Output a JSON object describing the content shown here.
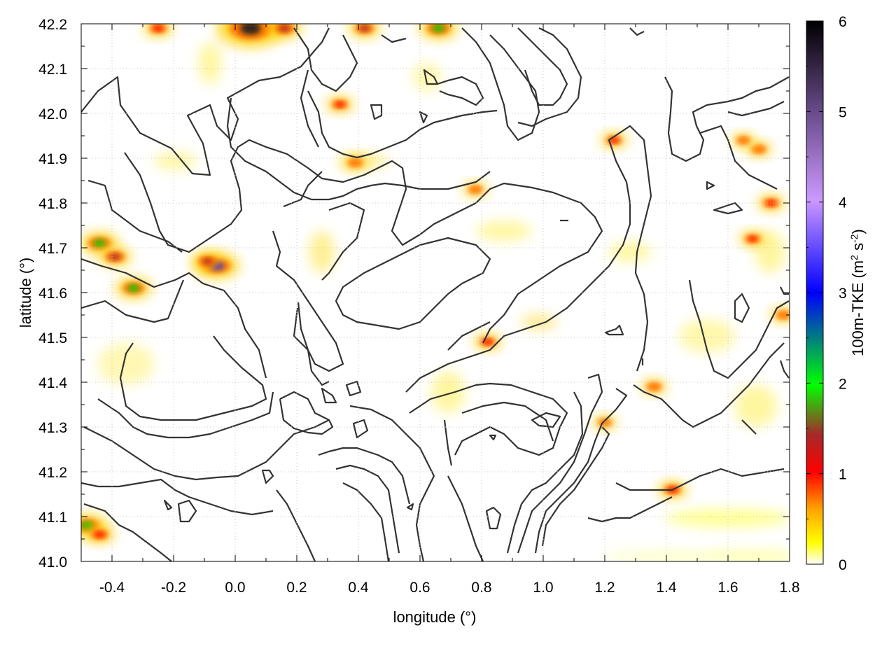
{
  "chart_data": {
    "type": "heatmap",
    "xlabel": "longitude (°)",
    "ylabel": "latitude (°)",
    "colorbar_label": "100m-TKE (m² s⁻²)",
    "colorbar_label_parts": {
      "main": "100m-TKE (m",
      "sup1": "2",
      "mid": " s",
      "sup2": "-2",
      "end": ")"
    },
    "xlim": [
      -0.5,
      1.8
    ],
    "ylim": [
      41.0,
      42.2
    ],
    "zlim": [
      0,
      6
    ],
    "x_ticks": [
      -0.4,
      -0.2,
      0.0,
      0.2,
      0.4,
      0.6,
      0.8,
      1.0,
      1.2,
      1.4,
      1.6,
      1.8
    ],
    "x_tick_labels": [
      "-0.4",
      "-0.2",
      "0.0",
      "0.2",
      "0.4",
      "0.6",
      "0.8",
      "1.0",
      "1.2",
      "1.4",
      "1.6",
      "1.8"
    ],
    "y_ticks": [
      41.0,
      41.1,
      41.2,
      41.3,
      41.4,
      41.5,
      41.6,
      41.7,
      41.8,
      41.9,
      42.0,
      42.1,
      42.2
    ],
    "y_tick_labels": [
      "41.0",
      "41.1",
      "41.2",
      "41.3",
      "41.4",
      "41.5",
      "41.6",
      "41.7",
      "41.8",
      "41.9",
      "42.0",
      "42.1",
      "42.2"
    ],
    "colorbar_ticks": [
      0,
      1,
      2,
      3,
      4,
      5,
      6
    ],
    "colorbar_tick_labels": [
      "0",
      "1",
      "2",
      "3",
      "4",
      "5",
      "6"
    ],
    "colormap": [
      "#ffffff",
      "#ffff00",
      "#ffa500",
      "#ff0000",
      "#a52a2a",
      "#00ff00",
      "#0000ff",
      "#cc99ff",
      "#000000"
    ],
    "grid": true,
    "contour_color": "#333333",
    "hotspots": [
      {
        "x": -0.44,
        "y": 41.71,
        "tke": 2.2
      },
      {
        "x": -0.39,
        "y": 41.68,
        "tke": 1.6
      },
      {
        "x": -0.33,
        "y": 41.61,
        "tke": 2.0
      },
      {
        "x": -0.06,
        "y": 41.66,
        "tke": 3.0
      },
      {
        "x": -0.09,
        "y": 41.67,
        "tke": 1.4
      },
      {
        "x": -0.48,
        "y": 41.08,
        "tke": 2.4
      },
      {
        "x": -0.44,
        "y": 41.06,
        "tke": 1.2
      },
      {
        "x": 0.05,
        "y": 42.19,
        "tke": 5.5
      },
      {
        "x": 0.16,
        "y": 42.19,
        "tke": 1.8
      },
      {
        "x": -0.25,
        "y": 42.19,
        "tke": 1.2
      },
      {
        "x": 0.42,
        "y": 42.19,
        "tke": 1.5
      },
      {
        "x": 0.66,
        "y": 42.19,
        "tke": 2.2
      },
      {
        "x": 0.34,
        "y": 42.02,
        "tke": 1.0
      },
      {
        "x": 0.82,
        "y": 41.49,
        "tke": 1.0
      },
      {
        "x": 1.42,
        "y": 41.16,
        "tke": 1.2
      },
      {
        "x": 1.36,
        "y": 41.39,
        "tke": 0.8
      },
      {
        "x": 1.68,
        "y": 41.72,
        "tke": 0.9
      },
      {
        "x": 1.74,
        "y": 41.8,
        "tke": 1.0
      },
      {
        "x": 1.7,
        "y": 41.92,
        "tke": 0.8
      },
      {
        "x": 1.78,
        "y": 41.55,
        "tke": 0.8
      },
      {
        "x": 1.23,
        "y": 41.94,
        "tke": 0.9
      },
      {
        "x": 0.78,
        "y": 41.83,
        "tke": 0.7
      },
      {
        "x": 0.39,
        "y": 41.89,
        "tke": 0.8
      },
      {
        "x": 1.2,
        "y": 41.31,
        "tke": 0.6
      },
      {
        "x": 1.65,
        "y": 41.94,
        "tke": 0.6
      }
    ]
  }
}
